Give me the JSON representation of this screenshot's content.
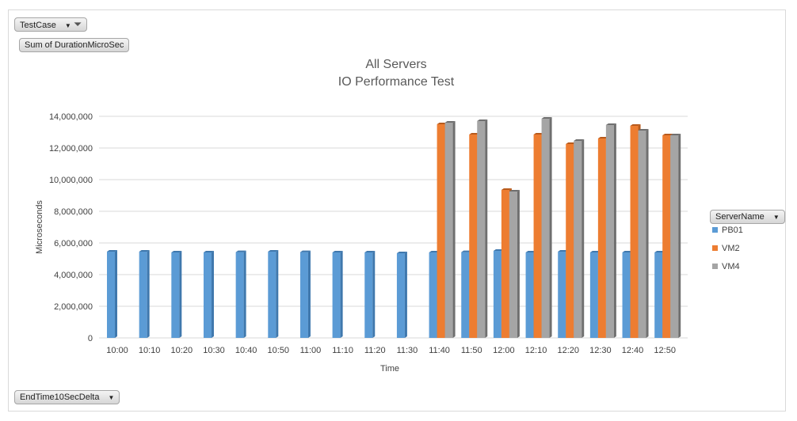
{
  "fields": {
    "filter_field": "TestCase",
    "value_field": "Sum of DurationMicroSec",
    "axis_field": "EndTime10SecDelta",
    "legend_field": "ServerName"
  },
  "chart_data": {
    "type": "bar",
    "title": "All Servers",
    "subtitle": "IO Performance Test",
    "xlabel": "Time",
    "ylabel": "Microseconds",
    "ylim": [
      0,
      14000000
    ],
    "yticks": [
      0,
      2000000,
      4000000,
      6000000,
      8000000,
      10000000,
      12000000,
      14000000
    ],
    "ytick_labels": [
      "0",
      "2,000,000",
      "4,000,000",
      "6,000,000",
      "8,000,000",
      "10,000,000",
      "12,000,000",
      "14,000,000"
    ],
    "grid": true,
    "legend_position": "right",
    "categories": [
      "10:00",
      "10:10",
      "10:20",
      "10:30",
      "10:40",
      "10:50",
      "11:00",
      "11:10",
      "11:20",
      "11:30",
      "11:40",
      "11:50",
      "12:00",
      "12:10",
      "12:20",
      "12:30",
      "12:40",
      "12:50"
    ],
    "series": [
      {
        "name": "PB01",
        "color": "#5b9bd5",
        "side": "#3f78ad",
        "values": [
          5450000,
          5450000,
          5400000,
          5400000,
          5420000,
          5450000,
          5420000,
          5400000,
          5400000,
          5350000,
          5400000,
          5420000,
          5500000,
          5400000,
          5450000,
          5400000,
          5400000,
          5400000
        ]
      },
      {
        "name": "VM2",
        "color": "#ed7d31",
        "side": "#b85a1c",
        "values": [
          null,
          null,
          null,
          null,
          null,
          null,
          null,
          null,
          null,
          null,
          13500000,
          12850000,
          9350000,
          12850000,
          12250000,
          12600000,
          13400000,
          12800000
        ]
      },
      {
        "name": "VM4",
        "color": "#a5a5a5",
        "side": "#6f6f6f",
        "values": [
          null,
          null,
          null,
          null,
          null,
          null,
          null,
          null,
          null,
          null,
          13600000,
          13700000,
          9250000,
          13850000,
          12450000,
          13450000,
          13100000,
          12800000
        ]
      }
    ]
  }
}
